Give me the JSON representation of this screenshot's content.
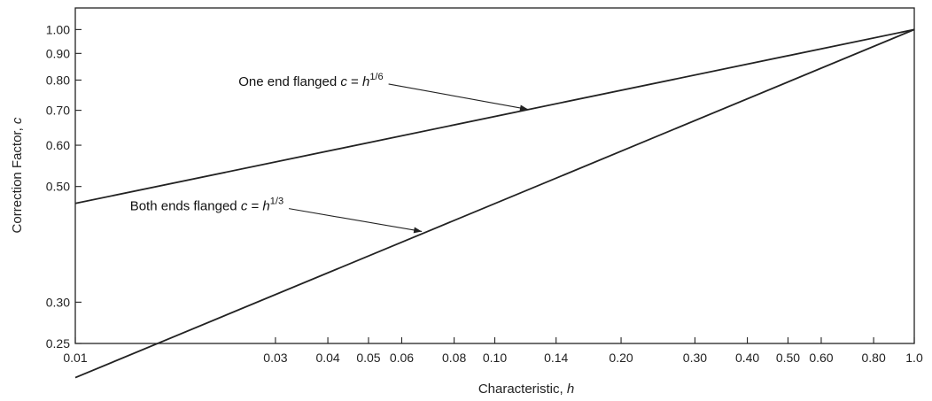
{
  "chart_data": {
    "type": "line",
    "x_scale": "log",
    "y_scale": "log",
    "xlim": [
      0.01,
      1.0
    ],
    "ylim": [
      0.25,
      1.1
    ],
    "grid": false,
    "xlabel_text": "Characteristic, ",
    "xlabel_var": "h",
    "ylabel_text": "Correction Factor, ",
    "ylabel_var": "c",
    "x_ticks": [
      {
        "value": 0.01,
        "label": "0.01"
      },
      {
        "value": 0.03,
        "label": "0.03"
      },
      {
        "value": 0.04,
        "label": "0.04"
      },
      {
        "value": 0.05,
        "label": "0.05"
      },
      {
        "value": 0.06,
        "label": "0.06"
      },
      {
        "value": 0.08,
        "label": "0.08"
      },
      {
        "value": 0.1,
        "label": "0.10"
      },
      {
        "value": 0.14,
        "label": "0.14"
      },
      {
        "value": 0.2,
        "label": "0.20"
      },
      {
        "value": 0.3,
        "label": "0.30"
      },
      {
        "value": 0.4,
        "label": "0.40"
      },
      {
        "value": 0.5,
        "label": "0.50"
      },
      {
        "value": 0.6,
        "label": "0.60"
      },
      {
        "value": 0.8,
        "label": "0.80"
      },
      {
        "value": 1.0,
        "label": "1.0"
      }
    ],
    "y_ticks": [
      {
        "value": 0.25,
        "label": "0.25"
      },
      {
        "value": 0.3,
        "label": "0.30"
      },
      {
        "value": 0.5,
        "label": "0.50"
      },
      {
        "value": 0.6,
        "label": "0.60"
      },
      {
        "value": 0.7,
        "label": "0.70"
      },
      {
        "value": 0.8,
        "label": "0.80"
      },
      {
        "value": 0.9,
        "label": "0.90"
      },
      {
        "value": 1.0,
        "label": "1.00"
      }
    ],
    "series": [
      {
        "key": "one-end",
        "exponent": 0.1667,
        "x": [
          0.01,
          1.0
        ],
        "y": [
          0.464,
          1.0
        ],
        "annotation": {
          "prefix": "One end flanged ",
          "var": "c",
          "eq": " = ",
          "base": "h",
          "sup": "1/6",
          "point": [
            0.12,
            0.703
          ],
          "text_at": [
            0.0245,
            0.78
          ]
        }
      },
      {
        "key": "both-ends",
        "exponent": 0.3333,
        "x": [
          0.01,
          1.0
        ],
        "y": [
          0.215,
          1.0
        ],
        "annotation": {
          "prefix": "Both ends flanged ",
          "var": "c",
          "eq": " = ",
          "base": "h",
          "sup": "1/3",
          "point": [
            0.067,
            0.41
          ],
          "text_at": [
            0.0135,
            0.45
          ]
        }
      }
    ]
  }
}
